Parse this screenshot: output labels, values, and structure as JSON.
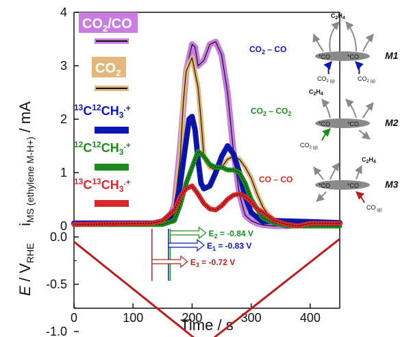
{
  "chart_data": [
    {
      "type": "line",
      "title": "",
      "xlabel": "Time / s",
      "ylabel": "iMS (ethylene M-H+) / mA",
      "xlim": [
        0,
        450
      ],
      "ylim": [
        0,
        4
      ],
      "x_ticks": [
        "0",
        "100",
        "200",
        "300",
        "400"
      ],
      "y_ticks": [
        "0",
        "1",
        "2",
        "3",
        "4"
      ],
      "series": [
        {
          "name": "CO2/CO",
          "color": "#c77ee0",
          "x": [
            0,
            140,
            160,
            170,
            180,
            190,
            200,
            205,
            210,
            220,
            230,
            240,
            250,
            260,
            270,
            280,
            290,
            300,
            310,
            320,
            340,
            360,
            400,
            450
          ],
          "values": [
            0.05,
            0.05,
            0.1,
            0.4,
            1.5,
            2.9,
            3.4,
            3.35,
            3.0,
            3.1,
            3.4,
            3.45,
            3.2,
            2.5,
            1.4,
            0.6,
            0.2,
            0.1,
            0.05,
            0.02,
            0,
            0,
            0.05,
            0.05
          ]
        },
        {
          "name": "CO2",
          "color": "#e3b77a",
          "x": [
            0,
            140,
            160,
            170,
            180,
            185,
            190,
            200,
            210,
            215,
            220,
            230,
            240,
            250,
            260,
            270,
            280,
            290,
            300,
            310,
            320,
            330,
            340,
            350,
            360,
            380,
            450
          ],
          "values": [
            0.03,
            0.03,
            0.1,
            0.3,
            1.3,
            2.3,
            2.9,
            3.15,
            2.6,
            2.0,
            1.3,
            1.1,
            1.05,
            1.1,
            1.25,
            1.3,
            1.25,
            1.1,
            0.9,
            0.6,
            0.35,
            0.2,
            0.1,
            0.05,
            0.02,
            0,
            0
          ]
        },
        {
          "name": "13C12CH3.+",
          "color": "#0b16b3",
          "x": [
            0,
            150,
            170,
            180,
            190,
            195,
            200,
            205,
            210,
            215,
            220,
            230,
            240,
            250,
            260,
            270,
            280,
            290,
            300,
            320,
            340,
            400,
            450
          ],
          "values": [
            0.05,
            0.05,
            0.2,
            0.8,
            1.6,
            2.0,
            2.05,
            1.8,
            1.25,
            0.8,
            0.7,
            0.75,
            1.0,
            1.3,
            1.5,
            1.35,
            1.0,
            0.55,
            0.25,
            0.08,
            0.1,
            0.08,
            0.06
          ]
        },
        {
          "name": "12C12CH3.+",
          "color": "#1e8a1e",
          "x": [
            0,
            150,
            170,
            180,
            190,
            200,
            210,
            220,
            230,
            240,
            250,
            260,
            270,
            280,
            290,
            300,
            320,
            340,
            360,
            450
          ],
          "values": [
            0.03,
            0.03,
            0.1,
            0.4,
            0.8,
            1.1,
            1.4,
            1.3,
            1.15,
            1.1,
            1.1,
            1.05,
            1.05,
            1.0,
            0.8,
            0.5,
            0.15,
            0.05,
            0,
            0
          ]
        },
        {
          "name": "13C13CH3.+",
          "color": "#d42a2a",
          "x": [
            0,
            130,
            150,
            170,
            180,
            190,
            200,
            210,
            220,
            230,
            240,
            250,
            260,
            270,
            280,
            290,
            300,
            310,
            320,
            340,
            360,
            380,
            400,
            420,
            450
          ],
          "values": [
            0.03,
            0.05,
            0.1,
            0.3,
            0.55,
            0.7,
            0.75,
            0.6,
            0.42,
            0.32,
            0.3,
            0.38,
            0.5,
            0.58,
            0.6,
            0.55,
            0.45,
            0.32,
            0.25,
            0.1,
            0.03,
            0,
            0.05,
            0.05,
            0.05
          ]
        }
      ]
    },
    {
      "type": "line",
      "title": "",
      "xlabel": "Time / s",
      "ylabel": "E / VRHE",
      "xlim": [
        0,
        450
      ],
      "ylim": [
        -1.17,
        0.1
      ],
      "x_ticks": [
        "0",
        "100",
        "200",
        "300",
        "400"
      ],
      "y_ticks": [
        "0.0",
        "-0.5",
        "-1.0"
      ],
      "minor_y_ticks": [
        "-0.25",
        "-0.75"
      ],
      "series": [
        {
          "name": "Potential",
          "color": "#b51f1f",
          "x": [
            0,
            220,
            450
          ],
          "values": [
            -0.05,
            -1.15,
            -0.02
          ]
        }
      ],
      "onset_potentials": [
        {
          "label": "E2 = -0.84 V",
          "time": 163,
          "potential": -0.84,
          "color": "#1e8a1e"
        },
        {
          "label": "E1 = -0.83 V",
          "time": 160,
          "potential": -0.83,
          "color": "#0b16b3"
        },
        {
          "label": "E3 = -0.72 V",
          "time": 132,
          "potential": -0.72,
          "color": "#b51f1f"
        }
      ]
    }
  ],
  "axes": {
    "ylabel_top_main": "i",
    "ylabel_top_sub": "MS (ethylene M-H+)",
    "ylabel_top_unit": " / mA",
    "ylabel_bottom_main": "E",
    "ylabel_bottom_mid": " / V",
    "ylabel_bottom_sub": "RHE",
    "xlabel": "Time / s",
    "top_y_ticks": [
      "0",
      "1",
      "2",
      "3",
      "4"
    ],
    "bottom_y_ticks": [
      "0.0",
      "-0.5",
      "-1.0"
    ],
    "x_ticks": [
      "0",
      "100",
      "200",
      "300",
      "400"
    ]
  },
  "legend": {
    "co2_co": {
      "label": "CO2/CO",
      "main": "CO",
      "sub": "2",
      "tail": "/CO",
      "box_color": "#c77ee0"
    },
    "co2": {
      "label": "CO2",
      "main": "CO",
      "sub": "2",
      "box_color": "#e3b77a"
    },
    "iso_13_12": {
      "label": "13C12CH3.+",
      "sup1": "13",
      "c1": "C",
      "sup2": "12",
      "c2": "CH",
      "sub3": "3",
      "supdot": ".+",
      "color": "#0b16b3"
    },
    "iso_12_12": {
      "label": "12C12CH3.+",
      "sup1": "12",
      "c1": "C",
      "sup2": "12",
      "c2": "CH",
      "sub3": "3",
      "supdot": ".+",
      "color": "#1e8a1e"
    },
    "iso_13_13": {
      "label": "13C13CH3.+",
      "sup1": "13",
      "c1": "C",
      "sup2": "13",
      "c2": "CH",
      "sub3": "3",
      "supdot": ".+",
      "color": "#d42a2a"
    }
  },
  "pair_labels": {
    "co2_co": {
      "label": "CO2 - CO",
      "a": "CO",
      "a_sub": "2",
      "tail": " – CO",
      "color": "#0b16b3"
    },
    "co2_co2": {
      "label": "CO2 - CO2",
      "a": "CO",
      "a_sub": "2",
      "mid": " – CO",
      "b_sub": "2",
      "color": "#1e8a1e"
    },
    "co_co": {
      "label": "CO - CO",
      "text": "CO – CO",
      "color": "#d42a2a"
    }
  },
  "mechanisms": [
    {
      "id": "M1",
      "label": "M1",
      "product": "C2H4",
      "left_site": "*CO",
      "right_site": "*CO",
      "left_feed": "CO2 (g)",
      "right_feed": "CO2 (g)",
      "left_color": "#0b16b3",
      "right_color": "#0b16b3"
    },
    {
      "id": "M2",
      "label": "M2",
      "product": "C2H4",
      "left_site": "*CO",
      "right_site": "*CO",
      "left_feed": "CO2 (g)",
      "left_color": "#1e8a1e"
    },
    {
      "id": "M3",
      "label": "M3",
      "product": "C2H4",
      "left_site": "*CO",
      "right_site": "*CO",
      "right_feed": "CO (g)",
      "right_color": "#b51f1f"
    }
  ]
}
